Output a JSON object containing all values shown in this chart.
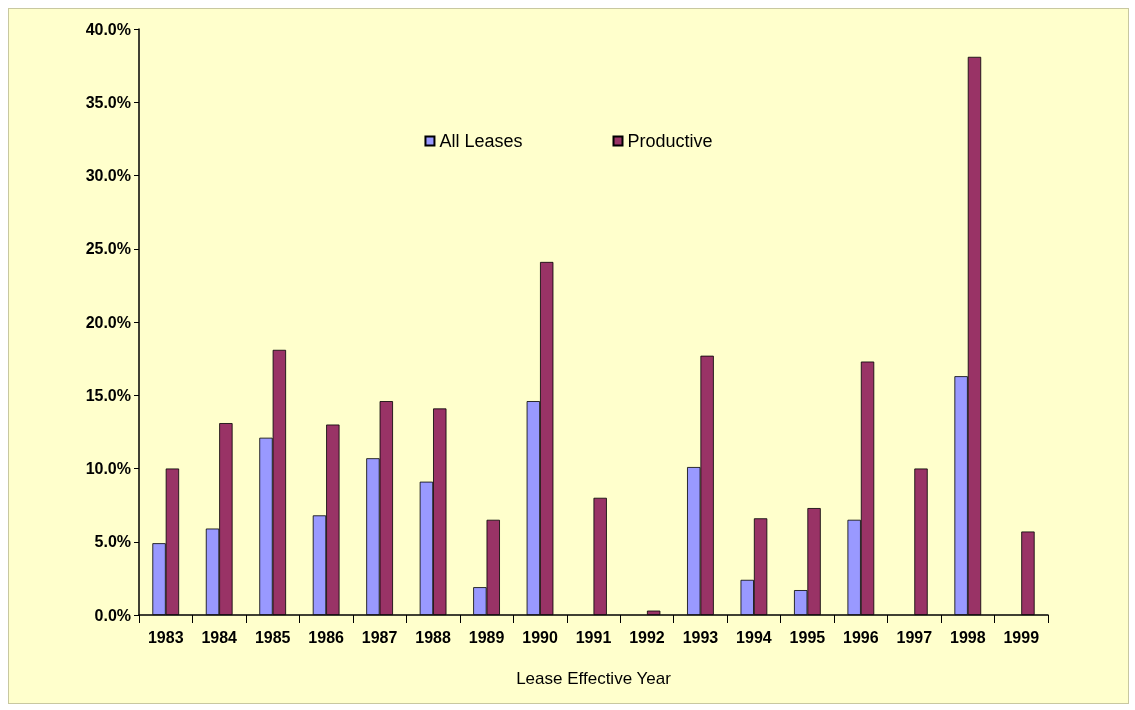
{
  "chart_data": {
    "type": "bar",
    "xlabel": "Lease Effective Year",
    "categories": [
      "1983",
      "1984",
      "1985",
      "1986",
      "1987",
      "1988",
      "1989",
      "1990",
      "1991",
      "1992",
      "1993",
      "1994",
      "1995",
      "1996",
      "1997",
      "1998",
      "1999"
    ],
    "series": [
      {
        "name": "All Leases",
        "color": "#9999ff",
        "values": [
          4.9,
          5.9,
          12.1,
          6.8,
          10.7,
          9.1,
          1.9,
          14.6,
          null,
          null,
          10.1,
          2.4,
          1.7,
          6.5,
          null,
          16.3,
          null
        ]
      },
      {
        "name": "Productive",
        "color": "#993366",
        "values": [
          10.0,
          13.1,
          18.1,
          13.0,
          14.6,
          14.1,
          6.5,
          24.1,
          8.0,
          0.3,
          17.7,
          6.6,
          7.3,
          17.3,
          10.0,
          38.1,
          5.7
        ]
      }
    ],
    "ylim": [
      0,
      40
    ],
    "yticks": [
      {
        "value": 0,
        "label": "0.0%"
      },
      {
        "value": 5,
        "label": "5.0%"
      },
      {
        "value": 10,
        "label": "10.0%"
      },
      {
        "value": 15,
        "label": "15.0%"
      },
      {
        "value": 20,
        "label": "20.0%"
      },
      {
        "value": 25,
        "label": "25.0%"
      },
      {
        "value": 30,
        "label": "30.0%"
      },
      {
        "value": 35,
        "label": "35.0%"
      },
      {
        "value": 40,
        "label": "40.0%"
      }
    ],
    "grid": false,
    "legend": "top"
  }
}
